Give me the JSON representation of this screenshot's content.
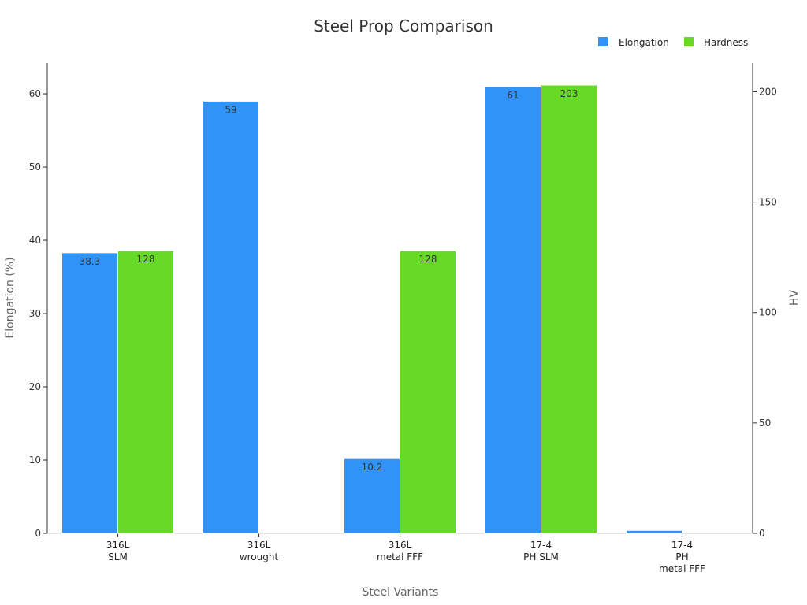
{
  "chart_data": {
    "type": "bar",
    "title": "Steel Prop Comparison",
    "xlabel": "Steel Variants",
    "ylabel": "Elongation (%)",
    "y2label": "HV",
    "categories": [
      [
        "316L",
        "SLM"
      ],
      [
        "316L",
        "wrought"
      ],
      [
        "316L",
        "metal FFF"
      ],
      [
        "17-4",
        "PH SLM"
      ],
      [
        "17-4",
        "PH",
        "metal FFF"
      ]
    ],
    "ylim": [
      0,
      64.2
    ],
    "y2lim": [
      0,
      213
    ],
    "yticks": [
      0,
      10,
      20,
      30,
      40,
      50,
      60
    ],
    "y2ticks": [
      0,
      50,
      100,
      150,
      200
    ],
    "legend_position": "top-right",
    "grid": false,
    "series": [
      {
        "name": "Elongation",
        "axis": "left",
        "color": "#3093f7",
        "values": [
          38.3,
          59,
          10.2,
          61,
          0.4
        ],
        "labels": [
          "38.3",
          "59",
          "10.2",
          "61",
          ""
        ]
      },
      {
        "name": "Hardness",
        "axis": "right",
        "color": "#66da26",
        "values": [
          128,
          null,
          128,
          203,
          null
        ],
        "labels": [
          "128",
          "",
          "128",
          "203",
          ""
        ]
      }
    ]
  }
}
